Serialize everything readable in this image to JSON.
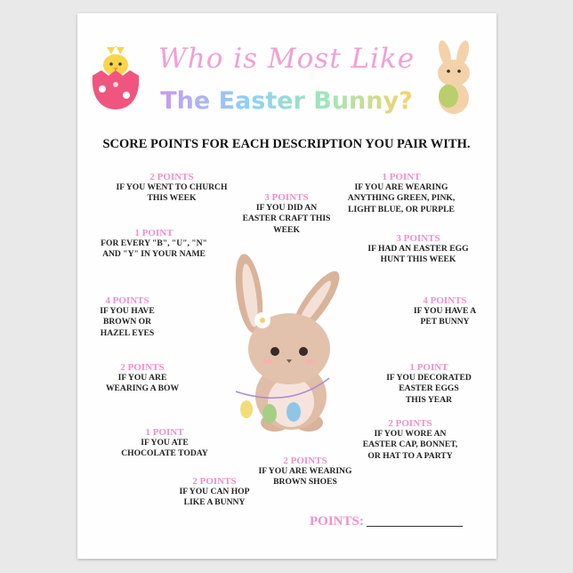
{
  "title": {
    "line1": "Who is Most Like",
    "line2": "The Easter Bunny?"
  },
  "heading": "SCORE POINTS FOR EACH DESCRIPTION YOU PAIR WITH.",
  "items": [
    {
      "points": "2 POINTS",
      "desc": "IF YOU WENT TO CHURCH\nTHIS WEEK"
    },
    {
      "points": "3 POINTS",
      "desc": "IF YOU DID AN\nEASTER CRAFT THIS\nWEEK"
    },
    {
      "points": "1 POINT",
      "desc": "IF YOU ARE WEARING\nANYTHING GREEN, PINK,\nLIGHT BLUE, OR PURPLE"
    },
    {
      "points": "1 POINT",
      "desc": "FOR EVERY \"B\", \"U\", \"N\"\nAND \"Y\" IN YOUR NAME"
    },
    {
      "points": "3 POINTS",
      "desc": "IF HAD AN EASTER EGG\nHUNT THIS WEEK"
    },
    {
      "points": "4 POINTS",
      "desc": "IF YOU HAVE\nBROWN OR\nHAZEL EYES"
    },
    {
      "points": "4 POINTS",
      "desc": "IF YOU HAVE A\nPET BUNNY"
    },
    {
      "points": "2 POINTS",
      "desc": "IF YOU ARE\nWEARING A BOW"
    },
    {
      "points": "1 POINT",
      "desc": "IF YOU DECORATED\nEASTER EGGS\nTHIS YEAR"
    },
    {
      "points": "1 POINT",
      "desc": "IF YOU ATE\nCHOCOLATE TODAY"
    },
    {
      "points": "2 POINTS",
      "desc": "IF YOU WORE AN\nEASTER CAP, BONNET,\nOR HAT TO A PARTY"
    },
    {
      "points": "2 POINTS",
      "desc": "IF YOU ARE WEARING\nBROWN SHOES"
    },
    {
      "points": "2 POINTS",
      "desc": "IF YOU CAN HOP\nLIKE A BUNNY"
    }
  ],
  "total_label": "POINTS:",
  "colors": {
    "accent_pink": "#f18fc8",
    "text": "#222222",
    "background": "#e9e9ea"
  }
}
